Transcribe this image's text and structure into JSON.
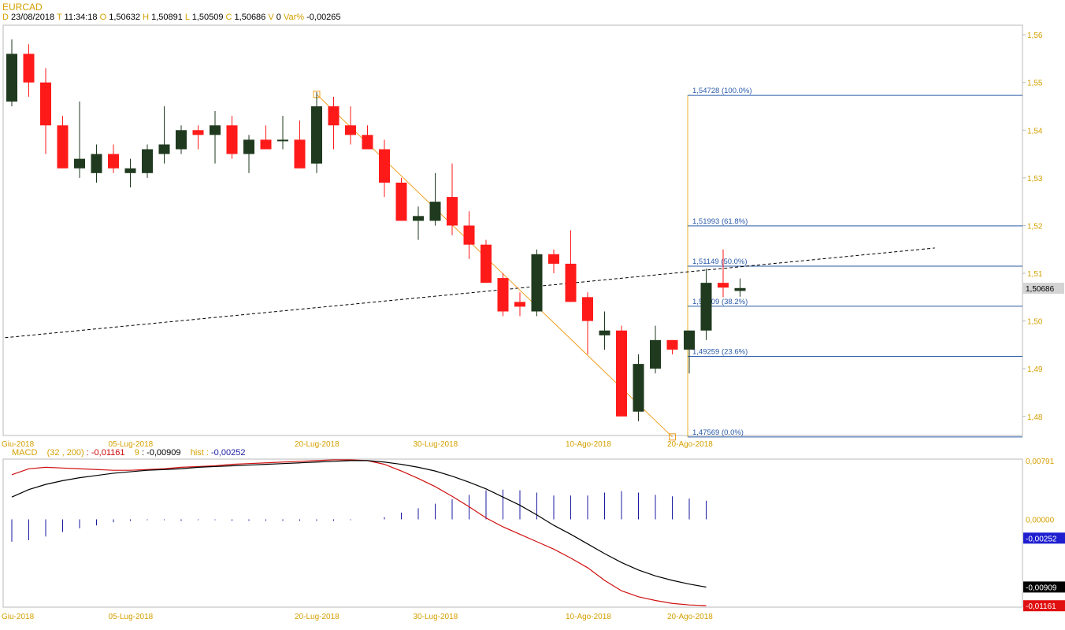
{
  "header": {
    "symbol": "EURCAD",
    "items": [
      {
        "label": "D",
        "value": "23/08/2018"
      },
      {
        "label": "T",
        "value": "11:34:18"
      },
      {
        "label": "O",
        "value": "1,50632"
      },
      {
        "label": "H",
        "value": "1,50891"
      },
      {
        "label": "L",
        "value": "1,50509"
      },
      {
        "label": "C",
        "value": "1,50686"
      },
      {
        "label": "V",
        "value": "0"
      },
      {
        "label": "Var%",
        "value": "-0,00265"
      }
    ]
  },
  "colors": {
    "up": "#1f3a1f",
    "down": "#ff1a1a",
    "axis_text": "#d4a000",
    "fib": "#2a5aa8",
    "trend": "#f0a020",
    "macd": "#000000",
    "signal": "#d01010",
    "hist": "#1a1aa0"
  },
  "chart_data": [
    {
      "type": "candlestick",
      "title": "EURCAD",
      "ylim": [
        1.476,
        1.562
      ],
      "y_ticks": [
        "1,56",
        "1,55",
        "1,54",
        "1,53",
        "1,52",
        "1,51",
        "1,50",
        "1,49",
        "1,48"
      ],
      "y_tick_values": [
        1.56,
        1.55,
        1.54,
        1.53,
        1.52,
        1.51,
        1.5,
        1.49,
        1.48
      ],
      "x_labels": [
        "Giu-2018",
        "05-Lug-2018",
        "20-Lug-2018",
        "30-Lug-2018",
        "10-Ago-2018",
        "20-Ago-2018"
      ],
      "x_label_index": [
        0,
        7,
        18,
        25,
        34,
        40
      ],
      "last_price": "1,50686",
      "last_price_value": 1.50686,
      "candles": [
        {
          "o": 1.546,
          "h": 1.559,
          "l": 1.545,
          "c": 1.556
        },
        {
          "o": 1.556,
          "h": 1.558,
          "l": 1.547,
          "c": 1.55
        },
        {
          "o": 1.55,
          "h": 1.553,
          "l": 1.535,
          "c": 1.541
        },
        {
          "o": 1.541,
          "h": 1.543,
          "l": 1.532,
          "c": 1.532
        },
        {
          "o": 1.532,
          "h": 1.546,
          "l": 1.53,
          "c": 1.534
        },
        {
          "o": 1.531,
          "h": 1.537,
          "l": 1.529,
          "c": 1.535
        },
        {
          "o": 1.535,
          "h": 1.537,
          "l": 1.531,
          "c": 1.532
        },
        {
          "o": 1.531,
          "h": 1.534,
          "l": 1.528,
          "c": 1.532
        },
        {
          "o": 1.531,
          "h": 1.537,
          "l": 1.53,
          "c": 1.536
        },
        {
          "o": 1.535,
          "h": 1.545,
          "l": 1.533,
          "c": 1.537
        },
        {
          "o": 1.536,
          "h": 1.541,
          "l": 1.535,
          "c": 1.54
        },
        {
          "o": 1.54,
          "h": 1.541,
          "l": 1.536,
          "c": 1.539
        },
        {
          "o": 1.539,
          "h": 1.544,
          "l": 1.533,
          "c": 1.541
        },
        {
          "o": 1.541,
          "h": 1.543,
          "l": 1.534,
          "c": 1.535
        },
        {
          "o": 1.535,
          "h": 1.539,
          "l": 1.531,
          "c": 1.538
        },
        {
          "o": 1.538,
          "h": 1.541,
          "l": 1.536,
          "c": 1.536
        },
        {
          "o": 1.538,
          "h": 1.543,
          "l": 1.536,
          "c": 1.538
        },
        {
          "o": 1.538,
          "h": 1.542,
          "l": 1.532,
          "c": 1.532
        },
        {
          "o": 1.533,
          "h": 1.548,
          "l": 1.531,
          "c": 1.545
        },
        {
          "o": 1.545,
          "h": 1.547,
          "l": 1.536,
          "c": 1.541
        },
        {
          "o": 1.541,
          "h": 1.545,
          "l": 1.537,
          "c": 1.539
        },
        {
          "o": 1.539,
          "h": 1.541,
          "l": 1.536,
          "c": 1.536
        },
        {
          "o": 1.536,
          "h": 1.538,
          "l": 1.526,
          "c": 1.529
        },
        {
          "o": 1.529,
          "h": 1.53,
          "l": 1.521,
          "c": 1.521
        },
        {
          "o": 1.521,
          "h": 1.524,
          "l": 1.517,
          "c": 1.522
        },
        {
          "o": 1.521,
          "h": 1.531,
          "l": 1.52,
          "c": 1.525
        },
        {
          "o": 1.526,
          "h": 1.533,
          "l": 1.518,
          "c": 1.52
        },
        {
          "o": 1.52,
          "h": 1.523,
          "l": 1.513,
          "c": 1.516
        },
        {
          "o": 1.516,
          "h": 1.517,
          "l": 1.508,
          "c": 1.508
        },
        {
          "o": 1.509,
          "h": 1.51,
          "l": 1.501,
          "c": 1.502
        },
        {
          "o": 1.504,
          "h": 1.506,
          "l": 1.501,
          "c": 1.503
        },
        {
          "o": 1.502,
          "h": 1.515,
          "l": 1.501,
          "c": 1.514
        },
        {
          "o": 1.514,
          "h": 1.515,
          "l": 1.51,
          "c": 1.512
        },
        {
          "o": 1.512,
          "h": 1.519,
          "l": 1.504,
          "c": 1.504
        },
        {
          "o": 1.505,
          "h": 1.506,
          "l": 1.493,
          "c": 1.5
        },
        {
          "o": 1.497,
          "h": 1.502,
          "l": 1.494,
          "c": 1.498
        },
        {
          "o": 1.498,
          "h": 1.499,
          "l": 1.48,
          "c": 1.48
        },
        {
          "o": 1.481,
          "h": 1.493,
          "l": 1.479,
          "c": 1.491
        },
        {
          "o": 1.49,
          "h": 1.499,
          "l": 1.489,
          "c": 1.496
        },
        {
          "o": 1.496,
          "h": 1.496,
          "l": 1.493,
          "c": 1.494
        },
        {
          "o": 1.494,
          "h": 1.498,
          "l": 1.489,
          "c": 1.498
        },
        {
          "o": 1.498,
          "h": 1.511,
          "l": 1.496,
          "c": 1.508
        },
        {
          "o": 1.508,
          "h": 1.515,
          "l": 1.505,
          "c": 1.507
        },
        {
          "o": 1.5063,
          "h": 1.5089,
          "l": 1.5051,
          "c": 1.5069
        }
      ],
      "fibonacci": {
        "start_index": 40,
        "end_index": 58,
        "levels": [
          {
            "price": 1.54728,
            "label": "1,54728 (100.0%)"
          },
          {
            "price": 1.51993,
            "label": "1,51993 (61.8%)"
          },
          {
            "price": 1.51149,
            "label": "1,51149 (50.0%)"
          },
          {
            "price": 1.50309,
            "label": "1,50309 (38.2%)"
          },
          {
            "price": 1.49259,
            "label": "1,49259 (23.6%)"
          },
          {
            "price": 1.47569,
            "label": "1,47569 (0.0%)"
          }
        ]
      },
      "trend_line": {
        "from": {
          "i": 18,
          "p": 1.5475
        },
        "to": {
          "i": 39,
          "p": 1.4757
        }
      },
      "dashed_line": {
        "from": {
          "i": -0.4,
          "p": 1.4965
        },
        "to": {
          "i": 54.5,
          "p": 1.5153
        }
      }
    },
    {
      "type": "line",
      "title": "MACD",
      "params": "(32 , 200)",
      "macd_label": ": -0,01161",
      "signal_label": "9",
      "signal_value": ": -0,00909",
      "hist_label": "hist :",
      "hist_value": "-0,00252",
      "ylim": [
        -0.0118,
        0.0081
      ],
      "y_ticks": [
        "0,00791",
        "0,00000"
      ],
      "y_tick_values": [
        0.00791,
        0.0
      ],
      "value_tags": [
        {
          "text": "-0,00252",
          "value": -0.00252,
          "bg": "#1f1fd0"
        },
        {
          "text": "-0,00909",
          "value": -0.00909,
          "bg": "#000000"
        },
        {
          "text": "-0,01161",
          "value": -0.01161,
          "bg": "#e01010"
        }
      ],
      "x_labels": [
        "Giu-2018",
        "05-Lug-2018",
        "20-Lug-2018",
        "30-Lug-2018",
        "10-Ago-2018",
        "20-Ago-2018"
      ],
      "series": [
        {
          "values": [
            0.003,
            0.004,
            0.0047,
            0.0052,
            0.0056,
            0.0059,
            0.0062,
            0.0064,
            0.0066,
            0.0067,
            0.0068,
            0.007,
            0.0071,
            0.0072,
            0.0073,
            0.0074,
            0.0075,
            0.0076,
            0.0077,
            0.0078,
            0.0079,
            0.0079,
            0.0077,
            0.0074,
            0.007,
            0.0065,
            0.0058,
            0.005,
            0.0041,
            0.003,
            0.0019,
            0.0006,
            -0.0008,
            -0.002,
            -0.0033,
            -0.0046,
            -0.0058,
            -0.0068,
            -0.0076,
            -0.0082,
            -0.0087,
            -0.0091
          ]
        },
        {
          "values": [
            0.006,
            0.0068,
            0.007,
            0.0069,
            0.0068,
            0.0067,
            0.0066,
            0.0066,
            0.0067,
            0.0068,
            0.007,
            0.0071,
            0.0072,
            0.0074,
            0.0075,
            0.0076,
            0.0077,
            0.0078,
            0.0079,
            0.008,
            0.008,
            0.0079,
            0.0074,
            0.0065,
            0.0055,
            0.0044,
            0.0031,
            0.0017,
            0.0002,
            -0.001,
            -0.002,
            -0.003,
            -0.004,
            -0.0052,
            -0.0065,
            -0.0082,
            -0.0096,
            -0.0104,
            -0.0109,
            -0.0113,
            -0.0115,
            -0.0116
          ]
        },
        {
          "values": [
            -0.003,
            -0.0028,
            -0.0023,
            -0.0017,
            -0.0012,
            -0.0008,
            -0.0004,
            -0.0002,
            -0.0001,
            -0.0001,
            -0.0002,
            -0.0001,
            -0.0001,
            -0.0002,
            -0.0002,
            -0.0002,
            -0.0002,
            -0.0002,
            -0.0002,
            -0.0002,
            -0.0001,
            0.0,
            0.0003,
            0.0009,
            0.0015,
            0.0021,
            0.0027,
            0.0033,
            0.0039,
            0.004,
            0.0039,
            0.0036,
            0.0032,
            0.0032,
            0.0032,
            0.0036,
            0.0038,
            0.0036,
            0.0033,
            0.0031,
            0.0028,
            0.0025
          ]
        }
      ]
    }
  ]
}
